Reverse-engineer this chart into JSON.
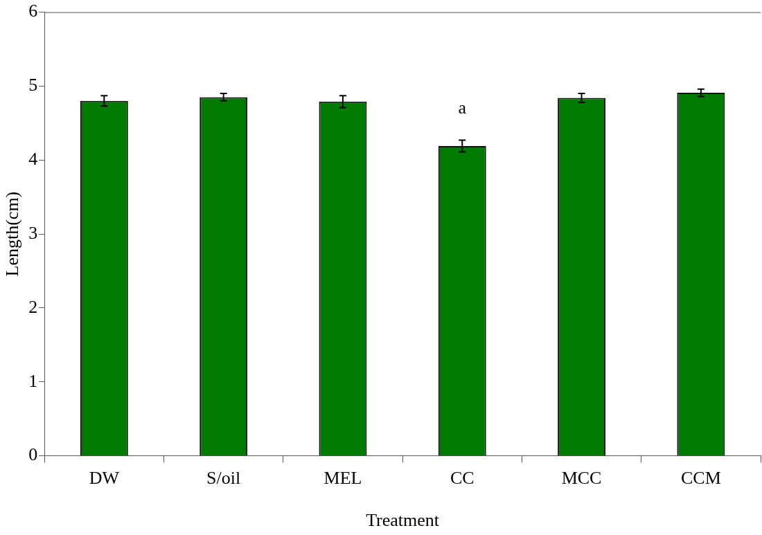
{
  "chart_data": {
    "type": "bar",
    "xlabel": "Treatment",
    "ylabel": "Length(cm)",
    "categories": [
      "DW",
      "S/oil",
      "MEL",
      "CC",
      "MCC",
      "CCM"
    ],
    "values": [
      4.8,
      4.85,
      4.79,
      4.19,
      4.84,
      4.91
    ],
    "errors": [
      0.07,
      0.05,
      0.08,
      0.08,
      0.06,
      0.05
    ],
    "color": "#007a00",
    "ylim": [
      0,
      6
    ],
    "yticks": [
      0,
      1,
      2,
      3,
      4,
      5,
      6
    ],
    "grid": false,
    "legend": false,
    "annotations": [
      "a"
    ]
  }
}
